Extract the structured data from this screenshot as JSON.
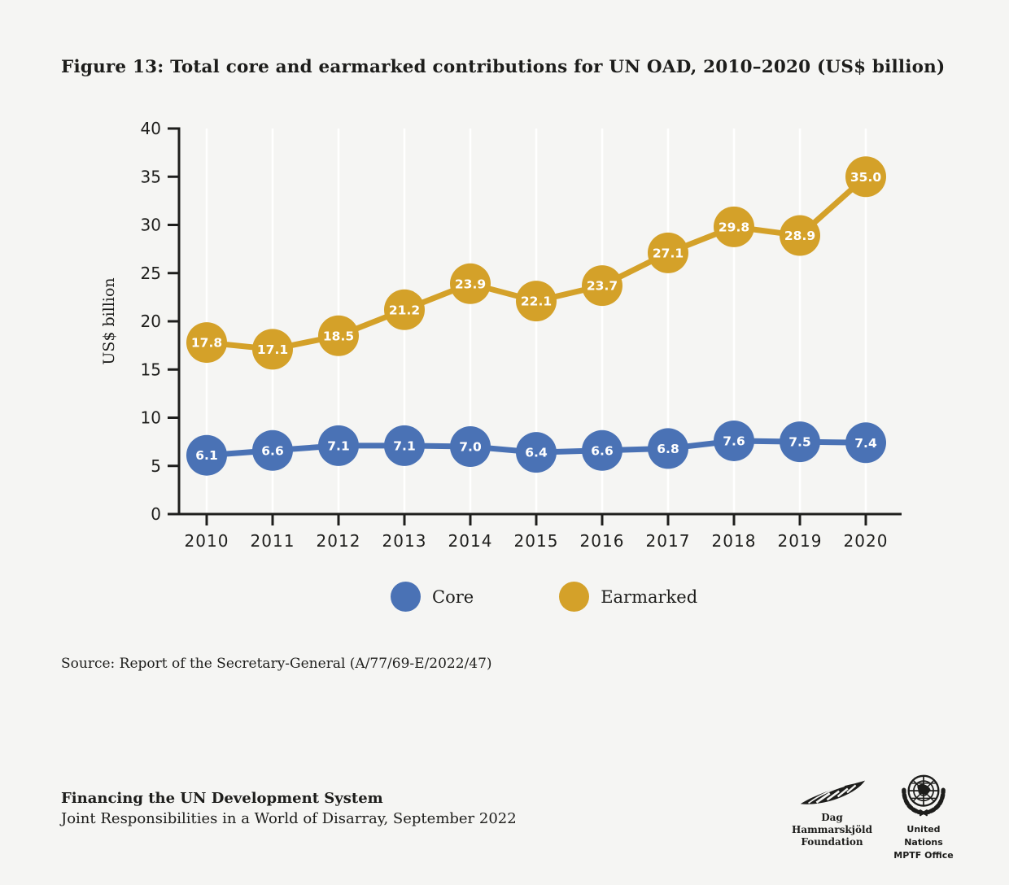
{
  "title": "Figure 13: Total core and earmarked contributions for UN OAD, 2010–2020 (US$ billion)",
  "source": "Source: Report of the Secretary-General (A/77/69-E/2022/47)",
  "chart_data": {
    "type": "line",
    "x": [
      2010,
      2011,
      2012,
      2013,
      2014,
      2015,
      2016,
      2017,
      2018,
      2019,
      2020
    ],
    "series": [
      {
        "name": "Core",
        "color": "#4A72B5",
        "values": [
          6.1,
          6.6,
          7.1,
          7.1,
          7.0,
          6.4,
          6.6,
          6.8,
          7.6,
          7.5,
          7.4
        ]
      },
      {
        "name": "Earmarked",
        "color": "#D4A129",
        "values": [
          17.8,
          17.1,
          18.5,
          21.2,
          23.9,
          22.1,
          23.7,
          27.1,
          29.8,
          28.9,
          35.0
        ]
      }
    ],
    "ylabel": "US$ billion",
    "ylim": [
      0,
      40
    ],
    "ytick_step": 5,
    "grid": "vertical-only",
    "grid_color": "#ffffff",
    "axis_color": "#1e1e1c",
    "point_label_color": "#ffffff",
    "legend_position": "bottom"
  },
  "footer": {
    "report_title": "Financing the UN Development System",
    "report_subtitle": "Joint Responsibilities in a World of Disarray, September 2022",
    "dhf_logo": {
      "line1": "Dag Hammarskjöld",
      "line2": "Foundation"
    },
    "un_logo": {
      "line1": "United Nations",
      "line2": "MPTF Office"
    }
  }
}
